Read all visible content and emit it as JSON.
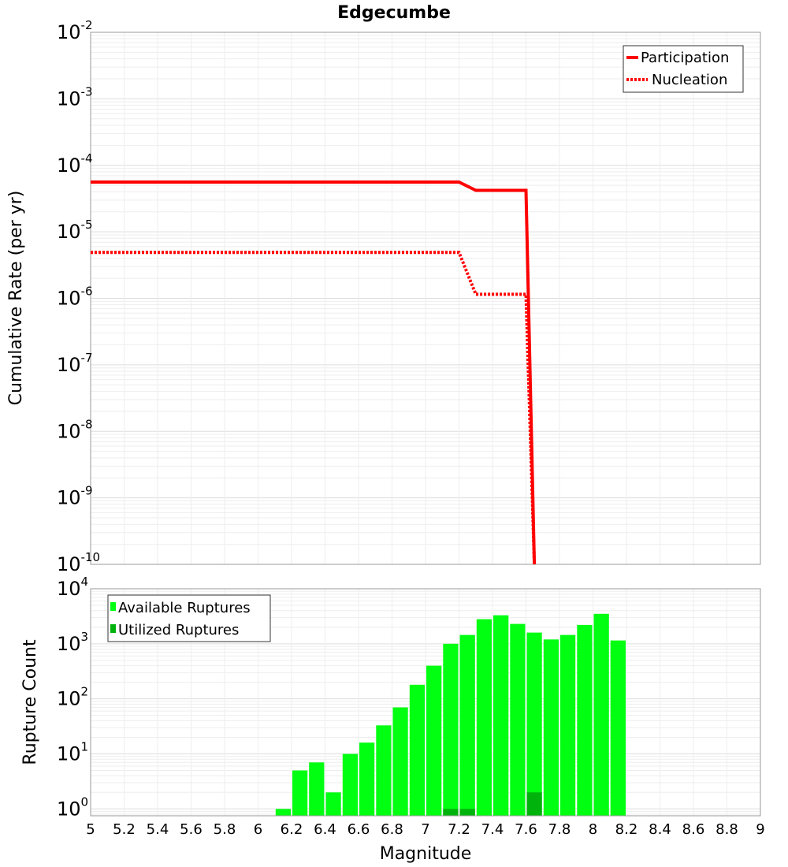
{
  "chart_data": [
    {
      "type": "line",
      "title": "Edgecumbe",
      "ylabel": "Cumulative Rate (per yr)",
      "yscale": "log",
      "xlim": [
        5,
        9
      ],
      "ylim": [
        1e-10,
        0.01
      ],
      "y_ticks": [
        {
          "base": "10",
          "exp": "-10",
          "value": 1e-10
        },
        {
          "base": "10",
          "exp": "-9",
          "value": 1e-09
        },
        {
          "base": "10",
          "exp": "-8",
          "value": 1e-08
        },
        {
          "base": "10",
          "exp": "-7",
          "value": 1e-07
        },
        {
          "base": "10",
          "exp": "-6",
          "value": 1e-06
        },
        {
          "base": "10",
          "exp": "-5",
          "value": 1e-05
        },
        {
          "base": "10",
          "exp": "-4",
          "value": 0.0001
        },
        {
          "base": "10",
          "exp": "-3",
          "value": 0.001
        },
        {
          "base": "10",
          "exp": "-2",
          "value": 0.01
        }
      ],
      "grid": true,
      "legend_position": "top-right",
      "series": [
        {
          "name": "Participation",
          "color": "#ff0000",
          "style": "solid",
          "x": [
            5.0,
            7.2,
            7.3,
            7.6,
            7.65
          ],
          "y": [
            5.6e-05,
            5.6e-05,
            4.2e-05,
            4.2e-05,
            1e-10
          ]
        },
        {
          "name": "Nucleation",
          "color": "#ff0000",
          "style": "dotted",
          "x": [
            5.0,
            7.2,
            7.3,
            7.6,
            7.65
          ],
          "y": [
            4.9e-06,
            4.9e-06,
            1.15e-06,
            1.15e-06,
            1e-10
          ]
        }
      ]
    },
    {
      "type": "bar",
      "ylabel": "Rupture Count",
      "xlabel": "Magnitude",
      "yscale": "log",
      "xlim": [
        5,
        9
      ],
      "ylim": [
        0.75,
        10000
      ],
      "x_ticks": [
        "5",
        "5.2",
        "5.4",
        "5.6",
        "5.8",
        "6",
        "6.2",
        "6.4",
        "6.6",
        "6.8",
        "7",
        "7.2",
        "7.4",
        "7.6",
        "7.8",
        "8",
        "8.2",
        "8.4",
        "8.6",
        "8.8",
        "9"
      ],
      "y_ticks": [
        {
          "base": "10",
          "exp": "0",
          "value": 1
        },
        {
          "base": "10",
          "exp": "1",
          "value": 10
        },
        {
          "base": "10",
          "exp": "2",
          "value": 100
        },
        {
          "base": "10",
          "exp": "3",
          "value": 1000
        },
        {
          "base": "10",
          "exp": "4",
          "value": 10000
        }
      ],
      "grid": true,
      "legend_position": "top-left",
      "bin_width": 0.1,
      "series": [
        {
          "name": "Available Ruptures",
          "color": "#00ff11",
          "x": [
            6.15,
            6.25,
            6.35,
            6.45,
            6.55,
            6.65,
            6.75,
            6.85,
            6.95,
            7.05,
            7.15,
            7.25,
            7.35,
            7.45,
            7.55,
            7.65,
            7.75,
            7.85,
            7.95,
            8.05,
            8.15
          ],
          "values": [
            1,
            5,
            7,
            2,
            10,
            16,
            33,
            70,
            180,
            400,
            1000,
            1450,
            2800,
            3300,
            2300,
            1600,
            1200,
            1450,
            2200,
            3500,
            1150
          ]
        },
        {
          "name": "Utilized Ruptures",
          "color": "#00b20c",
          "x": [
            7.15,
            7.25,
            7.65
          ],
          "values": [
            1,
            1,
            2
          ]
        }
      ]
    }
  ]
}
